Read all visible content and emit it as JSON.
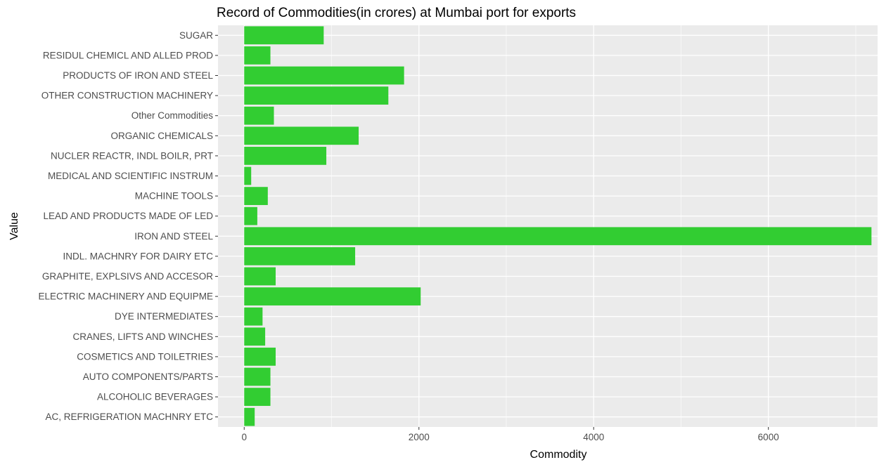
{
  "chart_data": {
    "type": "bar",
    "orientation": "horizontal",
    "title": "Record of Commodities(in crores) at Mumbai port for exports",
    "xlabel": "Commodity",
    "ylabel": "Value",
    "categories": [
      "AC, REFRIGERATION MACHNRY ETC",
      "ALCOHOLIC BEVERAGES",
      "AUTO COMPONENTS/PARTS",
      "COSMETICS AND TOILETRIES",
      "CRANES, LIFTS AND WINCHES",
      "DYE INTERMEDIATES",
      "ELECTRIC MACHINERY AND EQUIPME",
      "GRAPHITE, EXPLSIVS AND ACCESOR",
      "INDL. MACHNRY FOR DAIRY ETC",
      "IRON AND STEEL",
      "LEAD AND PRODUCTS MADE OF LED",
      "MACHINE TOOLS",
      "MEDICAL AND SCIENTIFIC INSTRUM",
      "NUCLER REACTR, INDL BOILR, PRT",
      "ORGANIC CHEMICALS",
      "Other Commodities",
      "OTHER CONSTRUCTION MACHINERY",
      "PRODUCTS OF IRON AND STEEL",
      "RESIDUL CHEMICL AND ALLED PROD",
      "SUGAR"
    ],
    "values": [
      120,
      300,
      300,
      360,
      240,
      210,
      2020,
      360,
      1270,
      7180,
      150,
      270,
      80,
      940,
      1310,
      340,
      1650,
      1830,
      300,
      910
    ],
    "xlim": [
      -300,
      7250
    ],
    "xticks": [
      0,
      2000,
      4000,
      6000
    ],
    "bar_color": "#32CD32",
    "panel_color": "#EBEBEB",
    "grid": true,
    "legend": "none"
  }
}
